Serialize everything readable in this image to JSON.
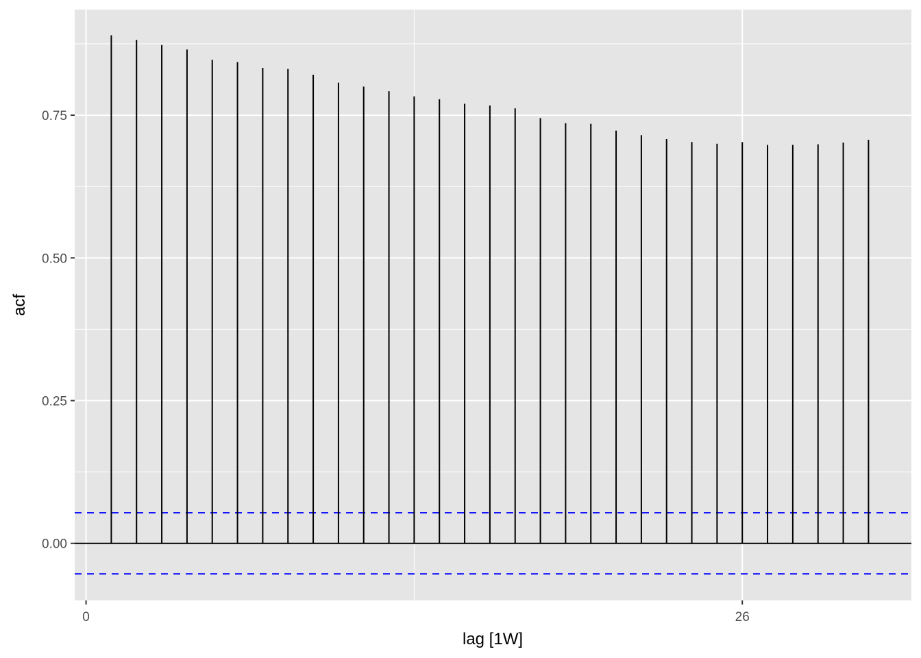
{
  "chart_data": {
    "type": "bar",
    "title": "",
    "xlabel": "lag [1W]",
    "ylabel": "acf",
    "x": [
      1,
      2,
      3,
      4,
      5,
      6,
      7,
      8,
      9,
      10,
      11,
      12,
      13,
      14,
      15,
      16,
      17,
      18,
      19,
      20,
      21,
      22,
      23,
      24,
      25,
      26,
      27,
      28,
      29,
      30,
      31
    ],
    "values": [
      0.89,
      0.882,
      0.873,
      0.865,
      0.847,
      0.843,
      0.833,
      0.831,
      0.821,
      0.807,
      0.8,
      0.792,
      0.783,
      0.778,
      0.77,
      0.767,
      0.762,
      0.745,
      0.736,
      0.735,
      0.723,
      0.715,
      0.708,
      0.703,
      0.7,
      0.703,
      0.698,
      0.698,
      0.699,
      0.702,
      0.707
    ],
    "confidence_bound": 0.0535,
    "xlim": [
      -0.45,
      32.7
    ],
    "ylim": [
      -0.1,
      0.935
    ],
    "x_ticks": [
      0,
      26
    ],
    "x_tick_labels": [
      "0",
      "26"
    ],
    "x_minor_gridlines": [
      13
    ],
    "y_ticks": [
      0.0,
      0.25,
      0.5,
      0.75
    ],
    "y_tick_labels": [
      "0.00",
      "0.25",
      "0.50",
      "0.75"
    ],
    "grid": true,
    "legend": "none",
    "colors": {
      "panel_background": "#e5e5e5",
      "gridline": "#ffffff",
      "bar": "#000000",
      "zero_line": "#000000",
      "confidence_line": "#0000ff",
      "tick_text": "#4d4d4d",
      "tick_mark": "#333333",
      "axis_title_text": "#000000"
    }
  }
}
